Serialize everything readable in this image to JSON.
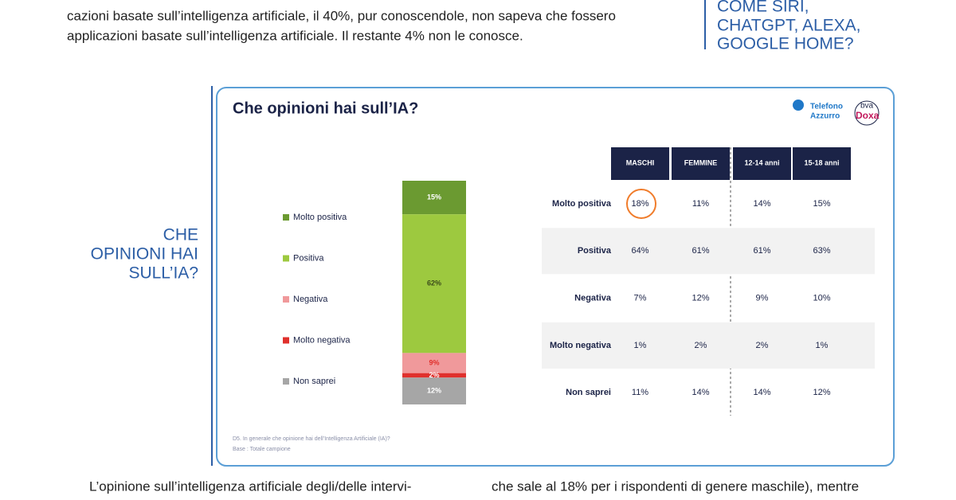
{
  "intro_text": [
    "cazioni basate sull’intelligenza artificiale, il 40%, pur conoscendole, non sapeva che fossero",
    "applicazioni basate sull’intelligenza artificiale. Il restante 4% non le conosce."
  ],
  "sidebar_top": [
    "COME SIRI,",
    "CHATGPT, ALEXA,",
    "GOOGLE HOME?"
  ],
  "section_title": [
    "CHE",
    "OPINIONI HAI",
    "SULL’IA?"
  ],
  "logos": [
    "Telefono",
    "Azzurro",
    "bva",
    "Doxa"
  ],
  "chart_data": {
    "type": "stacked_bar",
    "title": "Che opinioni hai sull’IA?",
    "series": [
      {
        "name": "Molto positiva",
        "color": "#6b9a31",
        "values": [
          15
        ],
        "value_labels": [
          "15%"
        ]
      },
      {
        "name": "Positiva",
        "color": "#9dc93f",
        "values": [
          62
        ],
        "value_labels": [
          "62%"
        ]
      },
      {
        "name": "Negativa",
        "color": "#f0999b",
        "values": [
          9
        ],
        "value_labels": [
          "9%"
        ]
      },
      {
        "name": "Molto negativa",
        "color": "#e0302c",
        "values": [
          2
        ],
        "value_labels": [
          "2%"
        ]
      },
      {
        "name": "Non saprei",
        "color": "#a6a6a6",
        "values": [
          12
        ],
        "value_labels": [
          "12%"
        ]
      }
    ]
  },
  "table": {
    "columns": [
      "MASCHI",
      "FEMMINE",
      "12-14 anni",
      "15-18 anni"
    ],
    "rows": [
      {
        "label": "Molto positiva",
        "cells": [
          "18%",
          "11%",
          "14%",
          "15%"
        ]
      },
      {
        "label": "Positiva",
        "cells": [
          "64%",
          "61%",
          "61%",
          "63%"
        ]
      },
      {
        "label": "Negativa",
        "cells": [
          "7%",
          "12%",
          "9%",
          "10%"
        ]
      },
      {
        "label": "Molto negativa",
        "cells": [
          "1%",
          "2%",
          "2%",
          "1%"
        ]
      },
      {
        "label": "Non saprei",
        "cells": [
          "11%",
          "14%",
          "14%",
          "12%"
        ]
      }
    ]
  },
  "footnote": [
    "D5. In generale che opinione hai dell’Intelligenza Artificiale (IA)?",
    "Base : Totale campione"
  ],
  "bottom_text": [
    "L’opinione sull’intelligenza artificiale degli/delle intervi-",
    "che sale al 18% per i rispondenti di genere maschile), mentre"
  ]
}
